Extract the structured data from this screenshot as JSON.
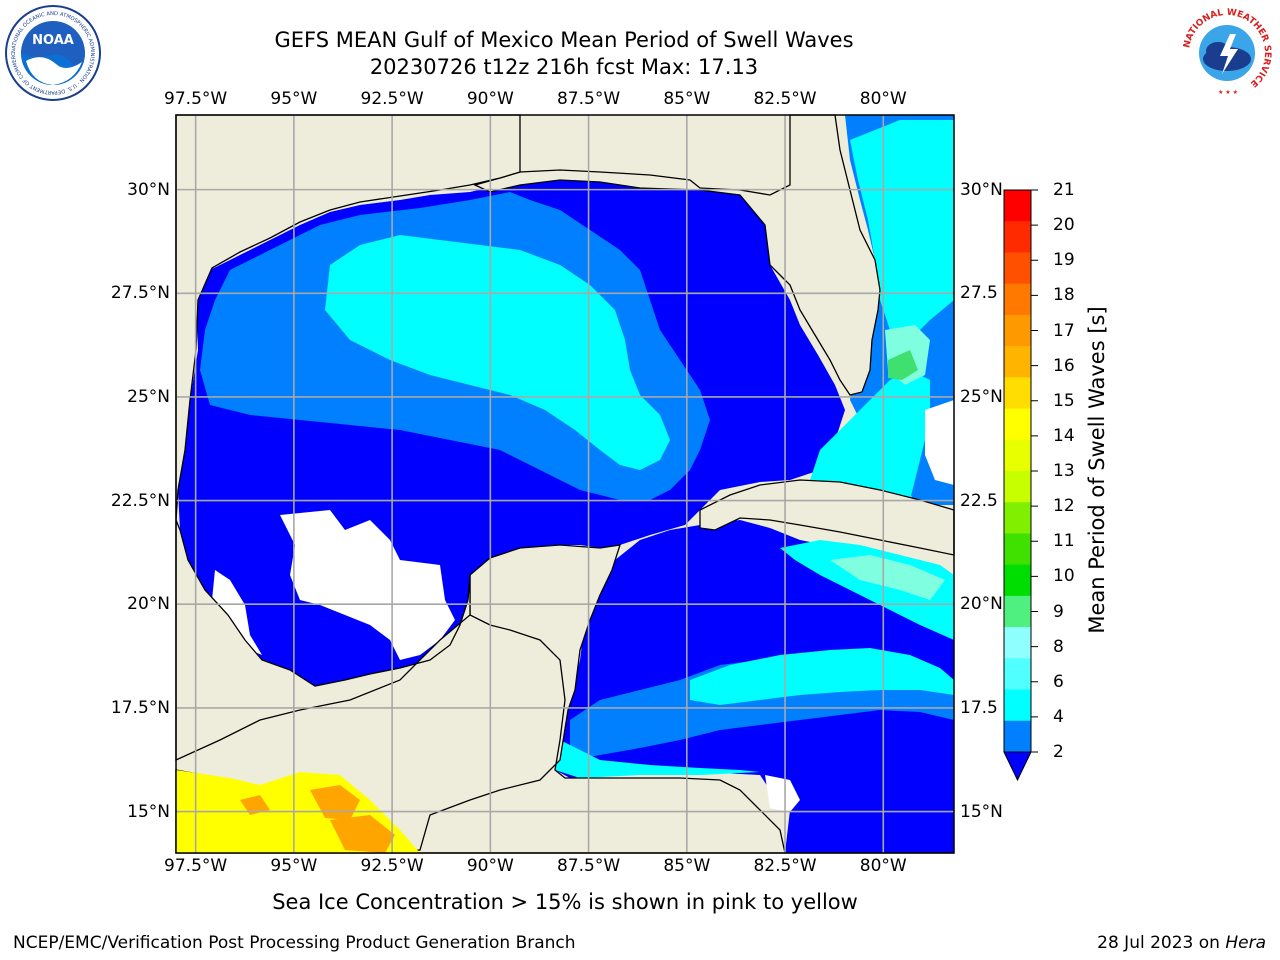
{
  "header": {
    "title_line1": "GEFS MEAN Gulf of Mexico Mean Period of Swell Waves",
    "title_line2": "20230726 t12z 216h fcst   Max: 17.13"
  },
  "logos": {
    "left_text": "NOAA",
    "left_ring_text": "NATIONAL OCEANIC AND ATMOSPHERIC ADMINISTRATION · U.S. DEPARTMENT OF COMMERCE",
    "right_ring_text": "NATIONAL WEATHER SERVICE"
  },
  "map": {
    "lon_labels": [
      "97.5°W",
      "95°W",
      "92.5°W",
      "90°W",
      "87.5°W",
      "85°W",
      "82.5°W",
      "80°W"
    ],
    "lat_labels_left": [
      "30°N",
      "27.5°N",
      "25°N",
      "22.5°N",
      "20°N",
      "17.5°N",
      "15°N"
    ],
    "lat_labels_right": [
      "30°N",
      "27.5",
      "25°N",
      "22.5",
      "20°N",
      "17.5",
      "15°N"
    ],
    "colors": {
      "land": "#eeeddb",
      "ocean_2_4": "#0000ff",
      "ocean_4_6": "#0080ff",
      "ocean_6_8": "#00ffff",
      "ocean_8_10": "#80ffe0",
      "ocean_10_12": "#40e070",
      "ice_high": "#ffa500",
      "ice_low": "#ffff00",
      "grid": "#a8a8a8"
    }
  },
  "colorbar": {
    "label": "Mean Period of Swell Waves [s]",
    "ticks": [
      "21",
      "20",
      "19",
      "18",
      "17",
      "16",
      "15",
      "14",
      "13",
      "12",
      "11",
      "10",
      "9",
      "8",
      "6",
      "4",
      "2"
    ],
    "colors_top_to_bottom": [
      "#ff0000",
      "#ff2a00",
      "#ff5000",
      "#ff7800",
      "#ff9900",
      "#ffb400",
      "#ffdd00",
      "#ffff00",
      "#e8ff00",
      "#c8ff00",
      "#80f000",
      "#40e000",
      "#00dd00",
      "#50f080",
      "#90ffff",
      "#50ffff",
      "#00ffff",
      "#0080ff"
    ],
    "extend_color": "#0000ff"
  },
  "caption": "Sea Ice Concentration > 15% is shown in pink to yellow",
  "footer": {
    "left": "NCEP/EMC/Verification Post Processing Product Generation Branch",
    "date": "28 Jul 2023 on ",
    "machine": "Hera"
  }
}
